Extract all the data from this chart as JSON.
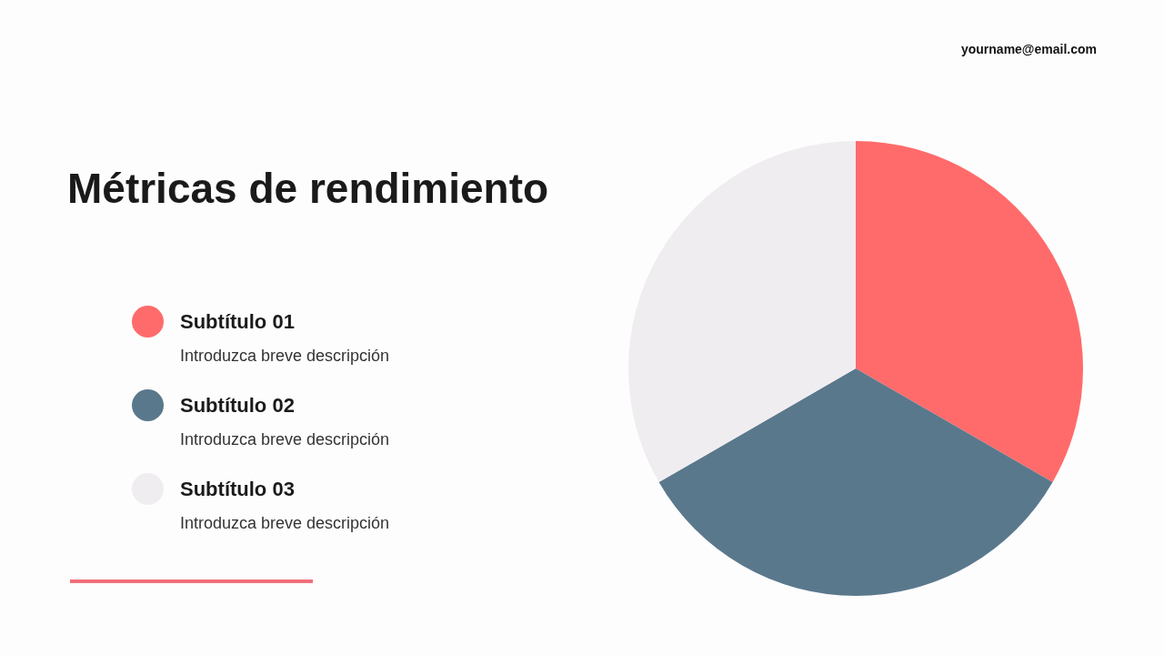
{
  "chart_data": {
    "type": "pie",
    "title": "Métricas de rendimiento",
    "categories": [
      "Subtítulo 01",
      "Subtítulo 02",
      "Subtítulo 03"
    ],
    "values": [
      33.33,
      33.33,
      33.34
    ],
    "colors": [
      "#ff6b6b",
      "#5a788c",
      "#efedf0"
    ],
    "legend": "left",
    "annotations": [
      "yourname@email.com",
      "Introduzca breve descripción",
      "Introduzca breve descripción",
      "Introduzca breve descripción"
    ]
  }
}
